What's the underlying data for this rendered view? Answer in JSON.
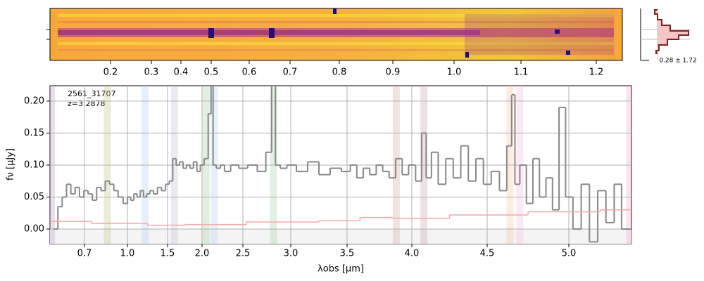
{
  "chart_data": [
    {
      "type": "image",
      "xlim": [
        0.08,
        1.25
      ],
      "xticks": [
        0.2,
        0.3,
        0.4,
        0.5,
        0.6,
        0.7,
        0.8,
        0.9,
        {
          "value": 1,
          "label": "1.0"
        },
        1.1,
        1.2
      ],
      "annotation": "0.28 ± 1.72"
    },
    {
      "type": "step",
      "title": "2561_31707",
      "subtitle": "z=3.2878",
      "xlabel": "λobs [μm]",
      "ylabel": "fν [μJy]",
      "xlim": [
        0.46,
        5.38
      ],
      "xticks": [
        0.7,
        {
          "value": 1,
          "label": "1.0"
        },
        1.5,
        {
          "value": 2,
          "label": "2.0"
        },
        2.5,
        {
          "value": 3,
          "label": "3.0"
        },
        3.5,
        {
          "value": 4,
          "label": "4.0"
        },
        4.5,
        {
          "value": 5,
          "label": "5.0"
        }
      ],
      "ylim": [
        -0.023,
        0.224
      ],
      "yticks": [
        {
          "value": 0,
          "label": "0.00"
        },
        0.05,
        {
          "value": 0.1,
          "label": "0.10"
        },
        0.15,
        {
          "value": 0.2,
          "label": "0.20"
        }
      ],
      "grid": true,
      "bands": [
        {
          "x": 0.47,
          "color": "#c8a0d8"
        },
        {
          "x": 0.86,
          "color": "#c8c890"
        },
        {
          "x": 1.22,
          "color": "#b8d4f0"
        },
        {
          "x": 1.6,
          "color": "#c8c0e0"
        },
        {
          "x": 2.05,
          "color": "#a8d4a8"
        },
        {
          "x": 2.15,
          "color": "#b8d4f0"
        },
        {
          "x": 2.82,
          "color": "#a8d4a8"
        },
        {
          "x": 3.88,
          "color": "#d8b0a8"
        },
        {
          "x": 4.08,
          "color": "#d0a8b0"
        },
        {
          "x": 4.64,
          "color": "#f8c8a8"
        },
        {
          "x": 4.7,
          "color": "#f8c0e0"
        },
        {
          "x": 5.37,
          "color": "#f0b0d8"
        }
      ],
      "x": [
        0.5,
        0.53,
        0.56,
        0.59,
        0.62,
        0.65,
        0.68,
        0.71,
        0.74,
        0.77,
        0.8,
        0.83,
        0.86,
        0.89,
        0.92,
        0.95,
        0.99,
        1.02,
        1.06,
        1.1,
        1.14,
        1.18,
        1.22,
        1.26,
        1.3,
        1.35,
        1.4,
        1.45,
        1.5,
        1.55,
        1.6,
        1.65,
        1.7,
        1.75,
        1.8,
        1.85,
        1.9,
        1.95,
        2.0,
        2.05,
        2.1,
        2.12,
        2.15,
        2.2,
        2.25,
        2.3,
        2.4,
        2.5,
        2.6,
        2.7,
        2.78,
        2.82,
        2.86,
        2.92,
        3.0,
        3.1,
        3.2,
        3.3,
        3.4,
        3.5,
        3.55,
        3.6,
        3.65,
        3.7,
        3.75,
        3.8,
        3.85,
        3.9,
        3.95,
        4.0,
        4.05,
        4.08,
        4.11,
        4.15,
        4.2,
        4.25,
        4.3,
        4.35,
        4.4,
        4.45,
        4.5,
        4.55,
        4.6,
        4.64,
        4.66,
        4.68,
        4.72,
        4.76,
        4.8,
        4.84,
        4.88,
        4.92,
        4.96,
        5.0,
        5.05,
        5.1,
        5.15,
        5.2,
        5.25,
        5.3,
        5.34,
        5.38
      ],
      "series": [
        {
          "color": "#888888",
          "values": [
            0.0,
            0.035,
            0.05,
            0.07,
            0.055,
            0.065,
            0.05,
            0.06,
            0.055,
            0.045,
            0.065,
            0.06,
            0.075,
            0.07,
            0.06,
            0.05,
            0.04,
            0.05,
            0.045,
            0.055,
            0.05,
            0.06,
            0.05,
            0.055,
            0.06,
            0.055,
            0.065,
            0.06,
            0.07,
            0.075,
            0.11,
            0.1,
            0.105,
            0.095,
            0.1,
            0.095,
            0.105,
            0.09,
            0.1,
            0.11,
            0.18,
            0.3,
            0.1,
            0.095,
            0.1,
            0.09,
            0.1,
            0.095,
            0.1,
            0.09,
            0.12,
            0.3,
            0.1,
            0.095,
            0.1,
            0.09,
            0.105,
            0.085,
            0.095,
            0.09,
            0.1,
            0.08,
            0.095,
            0.085,
            0.1,
            0.09,
            0.08,
            0.11,
            0.085,
            0.1,
            0.075,
            0.15,
            0.08,
            0.12,
            0.07,
            0.11,
            0.08,
            0.13,
            0.075,
            0.11,
            0.07,
            0.09,
            0.06,
            0.13,
            0.21,
            0.07,
            0.1,
            0.04,
            0.11,
            0.05,
            0.08,
            0.03,
            0.19,
            0.05,
            0.0,
            0.07,
            -0.02,
            0.06,
            0.01,
            0.07,
            0.0,
            0.0
          ]
        },
        {
          "color": "#f4a8a8",
          "x": [
            0.5,
            1.0,
            1.5,
            2.0,
            3.0,
            3.5,
            3.7,
            4.0,
            4.5,
            5.0,
            5.38
          ],
          "values": [
            0.012,
            0.009,
            0.006,
            0.007,
            0.011,
            0.013,
            0.018,
            0.017,
            0.022,
            0.027,
            0.03
          ]
        }
      ]
    }
  ]
}
